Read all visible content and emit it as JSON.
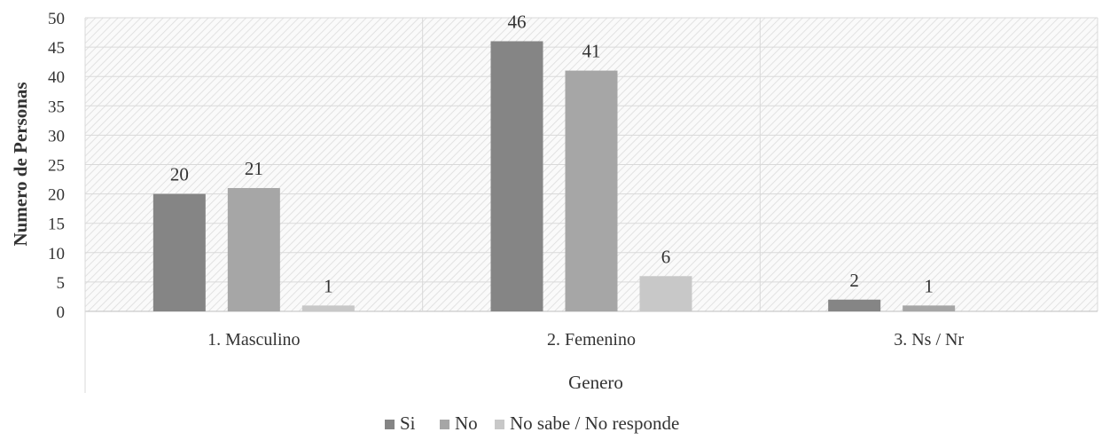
{
  "chart_data": {
    "type": "bar",
    "xlabel": "Genero",
    "ylabel": "Numero de Personas",
    "ylim": [
      0,
      50
    ],
    "yticks": [
      0,
      5,
      10,
      15,
      20,
      25,
      30,
      35,
      40,
      45,
      50
    ],
    "categories": [
      "1. Masculino",
      "2. Femenino",
      "3. Ns / Nr"
    ],
    "series": [
      {
        "name": "Si",
        "color": "#858585",
        "values": [
          20,
          46,
          2
        ]
      },
      {
        "name": "No",
        "color": "#a6a6a6",
        "values": [
          21,
          41,
          1
        ]
      },
      {
        "name": "No sabe / No responde",
        "color": "#c8c8c8",
        "values": [
          1,
          6,
          null
        ]
      }
    ],
    "grid": true,
    "legend_position": "bottom"
  }
}
